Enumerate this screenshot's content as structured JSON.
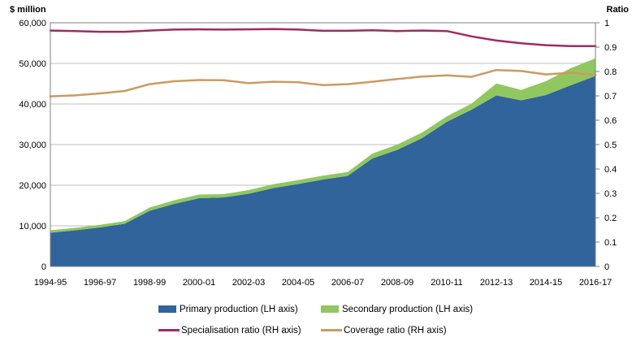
{
  "chart": {
    "styles": {
      "background": "#FFFFFF",
      "plot_border": "#808080",
      "gridline": "#BFBFBF",
      "text_color": "#000000"
    }
  },
  "chart_data": {
    "type": "area",
    "title": "",
    "categories": [
      "1994-95",
      "1995-96",
      "1996-97",
      "1997-98",
      "1998-99",
      "1999-00",
      "2000-01",
      "2001-02",
      "2002-03",
      "2003-04",
      "2004-05",
      "2005-06",
      "2006-07",
      "2007-08",
      "2008-09",
      "2009-10",
      "2010-11",
      "2011-12",
      "2012-13",
      "2013-14",
      "2014-15",
      "2015-16",
      "2016-17"
    ],
    "x_tick_labels_shown": [
      "1994-95",
      "1996-97",
      "1998-99",
      "2000-01",
      "2002-03",
      "2004-05",
      "2006-07",
      "2008-09",
      "2010-11",
      "2012-13",
      "2014-15",
      "2016-17"
    ],
    "x_tick_every": 2,
    "series": [
      {
        "name": "Primary production (LH axis)",
        "type": "area",
        "axis": "left",
        "color": "#31649B",
        "values": [
          8300,
          8900,
          9600,
          10500,
          13700,
          15400,
          16800,
          17000,
          17900,
          19300,
          20300,
          21400,
          22300,
          26600,
          28700,
          31600,
          35600,
          38600,
          42100,
          40900,
          42200,
          44600,
          46900
        ]
      },
      {
        "name": "Secondary production (LH axis)",
        "type": "area",
        "axis": "left",
        "stacked_on_previous": true,
        "color": "#90C75F",
        "values": [
          600,
          600,
          650,
          650,
          800,
          900,
          900,
          800,
          900,
          950,
          950,
          950,
          950,
          1200,
          1300,
          1350,
          1350,
          1500,
          2950,
          2550,
          3400,
          4200,
          4350
        ]
      },
      {
        "name": "Specialisation ratio (RH axis)",
        "type": "line",
        "axis": "right",
        "color": "#9E2B62",
        "values": [
          0.968,
          0.966,
          0.963,
          0.963,
          0.968,
          0.972,
          0.973,
          0.972,
          0.973,
          0.974,
          0.972,
          0.967,
          0.967,
          0.969,
          0.966,
          0.968,
          0.966,
          0.944,
          0.927,
          0.916,
          0.908,
          0.904,
          0.904
        ]
      },
      {
        "name": "Coverage ratio (RH axis)",
        "type": "line",
        "axis": "right",
        "color": "#CC9A62",
        "values": [
          0.698,
          0.702,
          0.71,
          0.72,
          0.748,
          0.76,
          0.765,
          0.764,
          0.752,
          0.758,
          0.756,
          0.744,
          0.748,
          0.758,
          0.769,
          0.779,
          0.784,
          0.778,
          0.806,
          0.802,
          0.788,
          0.795,
          0.786
        ]
      }
    ],
    "left_axis": {
      "title": "$ million",
      "min": 0,
      "max": 60000,
      "tick_interval": 10000,
      "tick_labels": [
        "0",
        "10,000",
        "20,000",
        "30,000",
        "40,000",
        "50,000",
        "60,000"
      ]
    },
    "right_axis": {
      "title": "Ratio",
      "min": 0,
      "max": 1,
      "tick_interval": 0.1,
      "tick_labels": [
        "0",
        "0.1",
        "0.2",
        "0.3",
        "0.4",
        "0.5",
        "0.6",
        "0.7",
        "0.8",
        "0.9",
        "1"
      ]
    },
    "grid": true,
    "legend_position": "bottom"
  }
}
